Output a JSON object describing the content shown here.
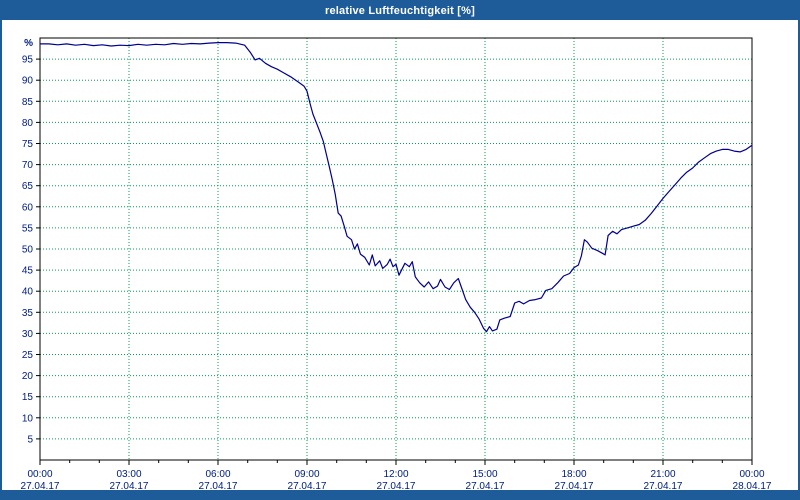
{
  "window": {
    "title": "relative Luftfeuchtigkeit [%]"
  },
  "colors": {
    "titlebar": "#1e5c99",
    "border": "#1e5c99",
    "line": "#000090",
    "grid": "#00a050",
    "tick_text": "#002080",
    "axis": "#000000",
    "plot_bg": "#ffffff"
  },
  "chart_data": {
    "type": "line",
    "title": "relative Luftfeuchtigkeit [%]",
    "xlabel": "",
    "ylabel": "%",
    "xlim": [
      0,
      24
    ],
    "ylim": [
      0,
      100
    ],
    "grid": true,
    "legend_position": "none",
    "y_ticks": [
      5,
      10,
      15,
      20,
      25,
      30,
      35,
      40,
      45,
      50,
      55,
      60,
      65,
      70,
      75,
      80,
      85,
      90,
      95
    ],
    "x_ticks": [
      "00:00",
      "03:00",
      "06:00",
      "09:00",
      "12:00",
      "15:00",
      "18:00",
      "21:00",
      "00:00"
    ],
    "x_dates": [
      "27.04.17",
      "27.04.17",
      "27.04.17",
      "27.04.17",
      "27.04.17",
      "27.04.17",
      "27.04.17",
      "27.04.17",
      "28.04.17"
    ],
    "series": [
      {
        "name": "relative Luftfeuchtigkeit",
        "points": [
          [
            0,
            98.6
          ],
          [
            0.3,
            98.6
          ],
          [
            0.6,
            98.4
          ],
          [
            0.9,
            98.6
          ],
          [
            1.2,
            98.3
          ],
          [
            1.5,
            98.5
          ],
          [
            1.8,
            98.2
          ],
          [
            2.1,
            98.4
          ],
          [
            2.4,
            98.1
          ],
          [
            2.7,
            98.3
          ],
          [
            3.0,
            98.2
          ],
          [
            3.3,
            98.5
          ],
          [
            3.6,
            98.3
          ],
          [
            3.9,
            98.5
          ],
          [
            4.2,
            98.4
          ],
          [
            4.5,
            98.7
          ],
          [
            4.8,
            98.5
          ],
          [
            5.1,
            98.7
          ],
          [
            5.4,
            98.6
          ],
          [
            5.7,
            98.8
          ],
          [
            6.0,
            98.9
          ],
          [
            6.3,
            98.9
          ],
          [
            6.6,
            98.8
          ],
          [
            6.9,
            98.3
          ],
          [
            7.1,
            96.5
          ],
          [
            7.25,
            94.8
          ],
          [
            7.4,
            95.2
          ],
          [
            7.6,
            94.0
          ],
          [
            7.8,
            93.2
          ],
          [
            8.0,
            92.6
          ],
          [
            8.2,
            91.8
          ],
          [
            8.45,
            90.8
          ],
          [
            8.7,
            89.6
          ],
          [
            8.9,
            88.6
          ],
          [
            9.0,
            87.4
          ],
          [
            9.1,
            84.5
          ],
          [
            9.2,
            82.0
          ],
          [
            9.3,
            80.2
          ],
          [
            9.45,
            77.5
          ],
          [
            9.55,
            75.5
          ],
          [
            9.65,
            72.5
          ],
          [
            9.75,
            69.5
          ],
          [
            9.85,
            66.5
          ],
          [
            9.95,
            63.0
          ],
          [
            10.05,
            58.5
          ],
          [
            10.15,
            57.8
          ],
          [
            10.25,
            55.5
          ],
          [
            10.35,
            53.0
          ],
          [
            10.5,
            52.2
          ],
          [
            10.6,
            50.0
          ],
          [
            10.7,
            51.2
          ],
          [
            10.8,
            48.8
          ],
          [
            10.95,
            48.0
          ],
          [
            11.1,
            46.2
          ],
          [
            11.2,
            48.6
          ],
          [
            11.3,
            46.0
          ],
          [
            11.45,
            47.2
          ],
          [
            11.55,
            45.4
          ],
          [
            11.7,
            46.3
          ],
          [
            11.8,
            47.6
          ],
          [
            11.9,
            45.8
          ],
          [
            12.0,
            46.4
          ],
          [
            12.1,
            43.8
          ],
          [
            12.2,
            45.2
          ],
          [
            12.3,
            46.6
          ],
          [
            12.45,
            45.8
          ],
          [
            12.55,
            47.0
          ],
          [
            12.65,
            43.4
          ],
          [
            12.8,
            42.0
          ],
          [
            12.95,
            41.0
          ],
          [
            13.1,
            42.2
          ],
          [
            13.25,
            40.6
          ],
          [
            13.4,
            41.2
          ],
          [
            13.5,
            42.8
          ],
          [
            13.65,
            41.0
          ],
          [
            13.8,
            40.4
          ],
          [
            13.95,
            42.0
          ],
          [
            14.1,
            43.0
          ],
          [
            14.2,
            41.0
          ],
          [
            14.35,
            38.0
          ],
          [
            14.5,
            36.2
          ],
          [
            14.65,
            35.0
          ],
          [
            14.8,
            33.4
          ],
          [
            14.95,
            31.2
          ],
          [
            15.05,
            30.4
          ],
          [
            15.15,
            31.6
          ],
          [
            15.25,
            30.6
          ],
          [
            15.4,
            31.0
          ],
          [
            15.5,
            33.2
          ],
          [
            15.65,
            33.6
          ],
          [
            15.85,
            34.0
          ],
          [
            16.0,
            37.2
          ],
          [
            16.15,
            37.6
          ],
          [
            16.3,
            37.0
          ],
          [
            16.5,
            37.8
          ],
          [
            16.7,
            38.0
          ],
          [
            16.9,
            38.4
          ],
          [
            17.05,
            40.2
          ],
          [
            17.25,
            40.6
          ],
          [
            17.45,
            42.0
          ],
          [
            17.65,
            43.6
          ],
          [
            17.85,
            44.2
          ],
          [
            18.0,
            45.6
          ],
          [
            18.15,
            46.2
          ],
          [
            18.25,
            48.4
          ],
          [
            18.35,
            52.2
          ],
          [
            18.45,
            51.6
          ],
          [
            18.6,
            50.2
          ],
          [
            18.8,
            49.6
          ],
          [
            18.95,
            49.0
          ],
          [
            19.05,
            48.6
          ],
          [
            19.15,
            53.2
          ],
          [
            19.3,
            54.2
          ],
          [
            19.45,
            53.6
          ],
          [
            19.6,
            54.6
          ],
          [
            19.8,
            55.0
          ],
          [
            20.0,
            55.4
          ],
          [
            20.2,
            55.8
          ],
          [
            20.4,
            56.8
          ],
          [
            20.6,
            58.4
          ],
          [
            20.8,
            60.2
          ],
          [
            21.0,
            62.0
          ],
          [
            21.2,
            63.6
          ],
          [
            21.4,
            65.2
          ],
          [
            21.6,
            66.8
          ],
          [
            21.8,
            68.2
          ],
          [
            22.0,
            69.2
          ],
          [
            22.2,
            70.6
          ],
          [
            22.4,
            71.6
          ],
          [
            22.6,
            72.6
          ],
          [
            22.8,
            73.2
          ],
          [
            23.0,
            73.6
          ],
          [
            23.2,
            73.6
          ],
          [
            23.4,
            73.2
          ],
          [
            23.6,
            73.0
          ],
          [
            23.8,
            73.6
          ],
          [
            24.0,
            74.6
          ]
        ]
      }
    ]
  }
}
